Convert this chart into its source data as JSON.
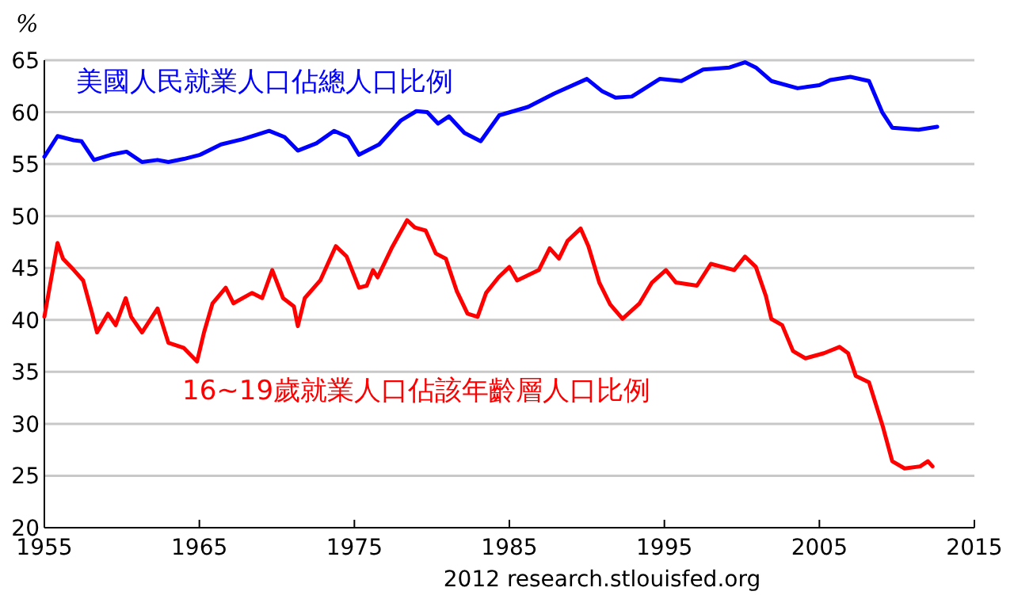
{
  "chart_data": {
    "type": "line",
    "ylabel": "%",
    "xlim": [
      1955,
      2015
    ],
    "xticks": [
      1955,
      1965,
      1975,
      1985,
      1995,
      2005,
      2015
    ],
    "ylim": [
      20,
      65
    ],
    "yticks": [
      20,
      25,
      30,
      35,
      40,
      45,
      50,
      55,
      60,
      65
    ],
    "grid": "y",
    "legend": false,
    "annotations": [
      "2012 research.stlouisfed.org"
    ],
    "series": [
      {
        "name": "美國人民就業人口佔總人口比例",
        "color": "#0000ff",
        "x": [
          1955,
          1955.85,
          1956.9,
          1957.4,
          1958.2,
          1959.3,
          1960.3,
          1961.3,
          1962.3,
          1963.0,
          1964.0,
          1965.05,
          1966.4,
          1967.8,
          1969.5,
          1970.5,
          1971.35,
          1972.55,
          1973.7,
          1974.6,
          1975.3,
          1976.6,
          1978.0,
          1979.0,
          1979.7,
          1980.4,
          1981.1,
          1982.1,
          1983.15,
          1984.35,
          1986.2,
          1987.9,
          1990.0,
          1991.0,
          1991.85,
          1992.9,
          1994.7,
          1996.1,
          1997.5,
          1999.2,
          2000.2,
          2000.9,
          2001.9,
          2003.6,
          2005.0,
          2005.7,
          2007.0,
          2008.2,
          2009.05,
          2009.7,
          2011.4,
          2012.6
        ],
        "values": [
          55.7,
          57.7,
          57.3,
          57.2,
          55.4,
          55.9,
          56.2,
          55.2,
          55.4,
          55.2,
          55.5,
          55.9,
          56.9,
          57.4,
          58.2,
          57.6,
          56.3,
          57.0,
          58.2,
          57.6,
          55.9,
          56.9,
          59.2,
          60.1,
          60.0,
          58.9,
          59.6,
          58.0,
          57.2,
          59.7,
          60.5,
          61.8,
          63.2,
          62.0,
          61.4,
          61.5,
          63.2,
          63.0,
          64.1,
          64.3,
          64.8,
          64.3,
          63.0,
          62.3,
          62.6,
          63.1,
          63.4,
          63.0,
          60.0,
          58.5,
          58.3,
          58.6
        ]
      },
      {
        "name": "16~19歲就業人口佔該年齡層人口比例",
        "color": "#ff0000",
        "x": [
          1955,
          1955.85,
          1956.2,
          1956.9,
          1957.5,
          1958.05,
          1958.4,
          1959.1,
          1959.6,
          1960.25,
          1960.6,
          1961.3,
          1962.3,
          1963.0,
          1964.0,
          1964.85,
          1965.3,
          1965.85,
          1966.7,
          1967.2,
          1968.4,
          1969.05,
          1969.7,
          1970.4,
          1971.1,
          1971.35,
          1971.8,
          1972.8,
          1973.8,
          1974.5,
          1975.3,
          1975.8,
          1976.2,
          1976.5,
          1977.4,
          1978.4,
          1978.9,
          1979.6,
          1980.25,
          1980.9,
          1981.6,
          1982.3,
          1982.95,
          1983.5,
          1984.3,
          1985.0,
          1985.5,
          1986.9,
          1987.6,
          1988.2,
          1988.75,
          1989.6,
          1990.1,
          1990.8,
          1991.5,
          1992.3,
          1993.4,
          1994.2,
          1995.1,
          1995.75,
          1997.1,
          1998.0,
          1999.5,
          2000.2,
          2000.9,
          2001.55,
          2001.9,
          2002.6,
          2003.3,
          2004.1,
          2005.3,
          2006.3,
          2006.85,
          2007.35,
          2008.2,
          2009.1,
          2009.7,
          2010.5,
          2011.5,
          2012.0,
          2012.3
        ],
        "values": [
          40.3,
          47.4,
          45.9,
          44.8,
          43.8,
          40.8,
          38.8,
          40.6,
          39.5,
          42.1,
          40.3,
          38.8,
          41.1,
          37.8,
          37.3,
          36.0,
          38.8,
          41.6,
          43.1,
          41.6,
          42.6,
          42.1,
          44.8,
          42.1,
          41.3,
          39.4,
          42.1,
          43.8,
          47.1,
          46.1,
          43.1,
          43.3,
          44.8,
          44.1,
          46.9,
          49.6,
          48.9,
          48.6,
          46.4,
          45.9,
          42.8,
          40.6,
          40.3,
          42.6,
          44.1,
          45.1,
          43.8,
          44.8,
          46.9,
          45.9,
          47.6,
          48.8,
          47.1,
          43.6,
          41.5,
          40.1,
          41.6,
          43.6,
          44.8,
          43.6,
          43.3,
          45.4,
          44.8,
          46.1,
          45.1,
          42.3,
          40.1,
          39.5,
          37.0,
          36.3,
          36.8,
          37.4,
          36.8,
          34.6,
          34.0,
          29.7,
          26.4,
          25.7,
          25.9,
          26.4,
          25.9
        ]
      }
    ]
  }
}
